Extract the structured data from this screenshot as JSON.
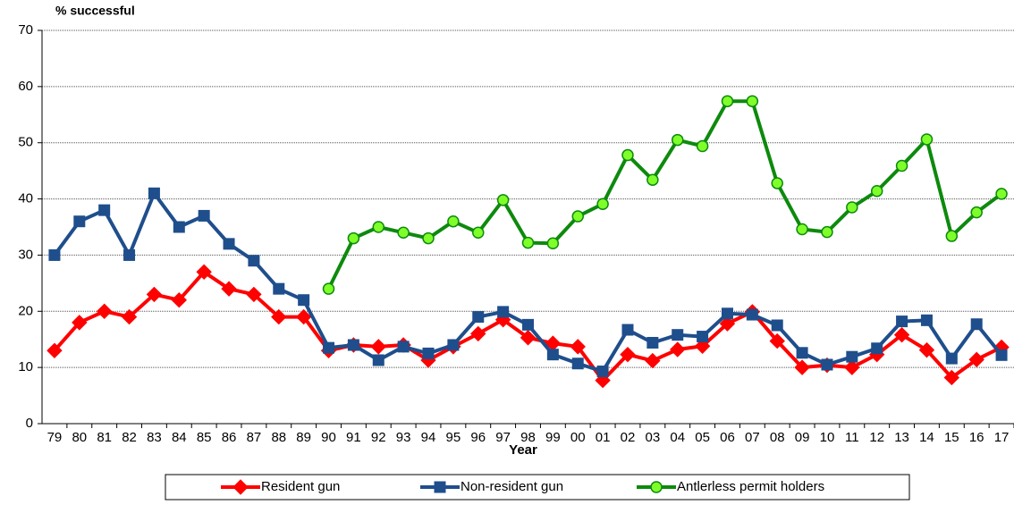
{
  "chart_data": {
    "type": "line",
    "y_label": "% successful",
    "x_label": "Year",
    "categories": [
      "79",
      "80",
      "81",
      "82",
      "83",
      "84",
      "85",
      "86",
      "87",
      "88",
      "89",
      "90",
      "91",
      "92",
      "93",
      "94",
      "95",
      "96",
      "97",
      "98",
      "99",
      "00",
      "01",
      "02",
      "03",
      "04",
      "05",
      "06",
      "07",
      "08",
      "09",
      "10",
      "11",
      "12",
      "13",
      "14",
      "15",
      "16",
      "17"
    ],
    "series": [
      {
        "name": "Resident gun",
        "color": "#ff0000",
        "marker": "diamond",
        "values": [
          13,
          18,
          20,
          19,
          23,
          22,
          27,
          24,
          23,
          19,
          19,
          13,
          14,
          13.7,
          14,
          11.3,
          13.7,
          16,
          18.5,
          15.3,
          14.3,
          13.7,
          7.7,
          12.3,
          11.2,
          13.2,
          13.8,
          17.8,
          19.9,
          14.7,
          10,
          10.4,
          10,
          12.3,
          15.8,
          13.1,
          8.2,
          11.4,
          13.6
        ]
      },
      {
        "name": "Non-resident gun",
        "color": "#1f4e8c",
        "marker": "square",
        "values": [
          30,
          36,
          38,
          30,
          41,
          35,
          37,
          32,
          29,
          24,
          22,
          13.5,
          14,
          11.3,
          13.7,
          12.5,
          14,
          19,
          19.9,
          17.6,
          12.3,
          10.7,
          9.3,
          16.7,
          14.4,
          15.8,
          15.5,
          19.6,
          19.4,
          17.5,
          12.6,
          10.5,
          11.9,
          13.4,
          18.2,
          18.4,
          11.6,
          17.7,
          12.2
        ]
      },
      {
        "name": "Antlerless permit holders",
        "color": "#0d8a0d",
        "marker": "circle",
        "marker_fill": "#7fff2a",
        "values": [
          null,
          null,
          null,
          null,
          null,
          null,
          null,
          null,
          null,
          null,
          null,
          24,
          33,
          35,
          34,
          33,
          36,
          34,
          39.8,
          32.2,
          32.1,
          36.9,
          39.1,
          47.8,
          43.4,
          50.5,
          49.4,
          57.4,
          57.4,
          42.8,
          34.6,
          34.1,
          38.5,
          41.4,
          45.9,
          50.6,
          33.4,
          37.6,
          40.9
        ]
      }
    ],
    "ylim": [
      0,
      70
    ],
    "yticks": [
      0,
      10,
      20,
      30,
      40,
      50,
      60,
      70
    ],
    "grid": true,
    "legend": "bottom"
  }
}
